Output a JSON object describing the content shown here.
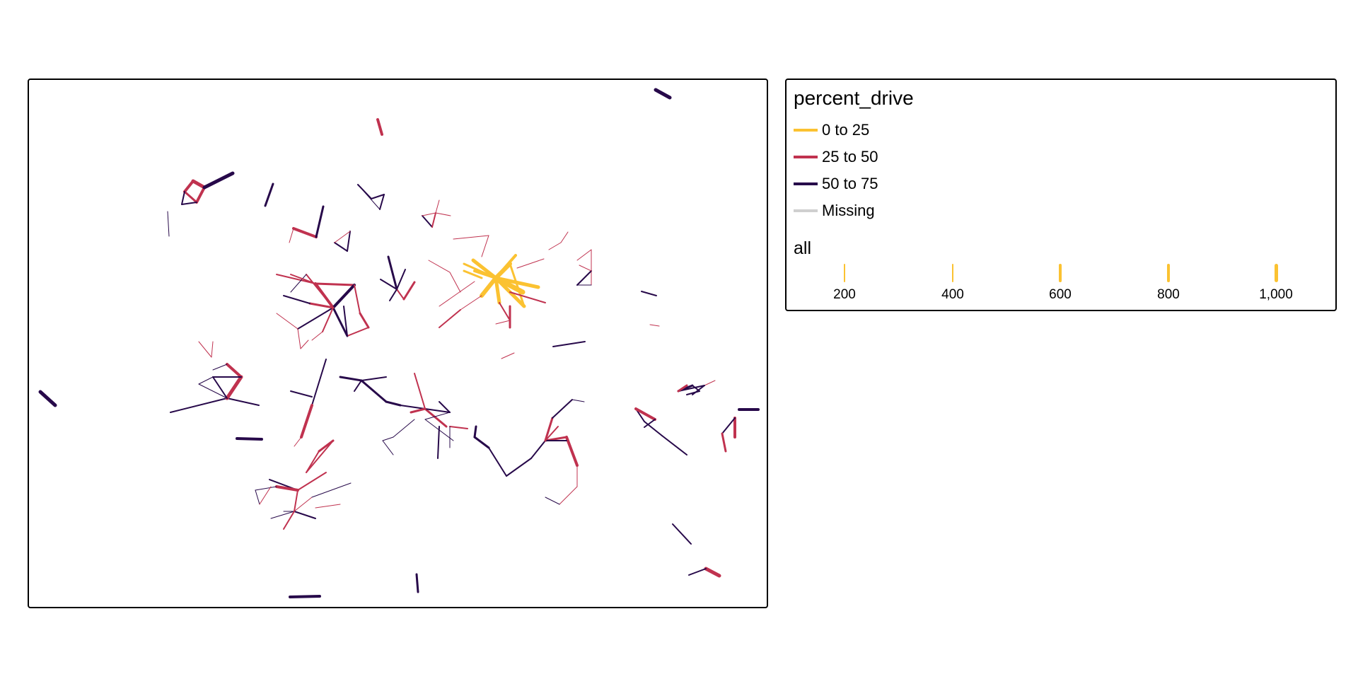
{
  "legend": {
    "color_title": "percent_drive",
    "color_items": [
      {
        "label": "0 to 25",
        "color": "#fbc231"
      },
      {
        "label": "25 to 50",
        "color": "#c0324f"
      },
      {
        "label": "50 to 75",
        "color": "#27094a"
      },
      {
        "label": "Missing",
        "color": "#cfcfcf"
      }
    ],
    "size_title": "all",
    "size_items": [
      {
        "label": "200",
        "value": 200
      },
      {
        "label": "400",
        "value": 400
      },
      {
        "label": "600",
        "value": 600
      },
      {
        "label": "800",
        "value": 800
      },
      {
        "label": "1,000",
        "value": 1000
      }
    ]
  },
  "colors": {
    "low": "#fbc231",
    "mid": "#c0324f",
    "high": "#27094a",
    "missing": "#cfcfcf"
  }
}
